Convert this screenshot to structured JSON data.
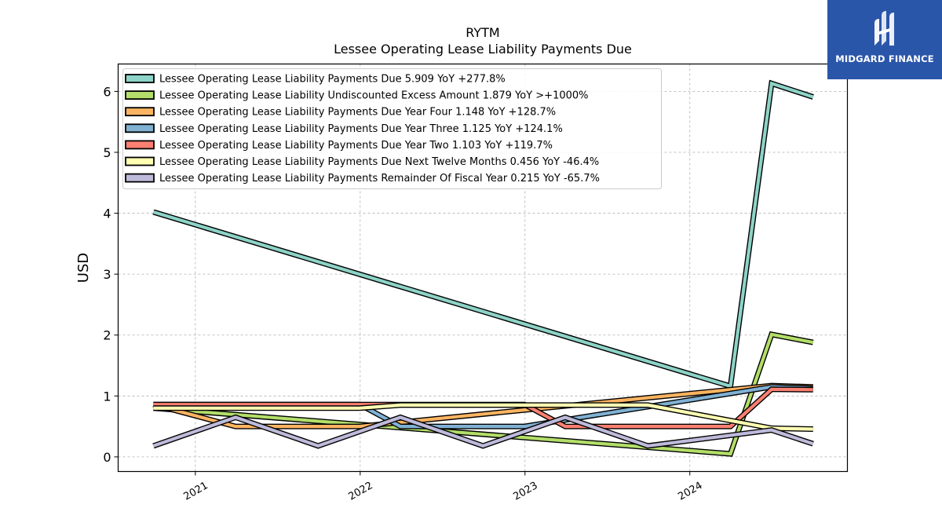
{
  "logo": {
    "text": "MIDGARD FINANCE",
    "background": "#2a56aa"
  },
  "chart_data": {
    "type": "line",
    "title": "RYTM",
    "subtitle": "Lessee Operating Lease Liability Payments Due",
    "xlabel": "",
    "ylabel": "USD",
    "xlim": [
      "2020-07-14",
      "2024-12-15"
    ],
    "ylim": [
      -0.24,
      6.45
    ],
    "yticks": [
      0,
      1,
      2,
      3,
      4,
      5,
      6
    ],
    "xticks": [
      "2021",
      "2022",
      "2023",
      "2024"
    ],
    "grid": true,
    "legend_position": "top-left",
    "x": [
      "2020-09-30",
      "2021-03-31",
      "2021-09-30",
      "2021-12-31",
      "2022-03-31",
      "2022-09-30",
      "2022-12-31",
      "2023-03-31",
      "2023-09-30",
      "2024-03-31",
      "2024-06-30",
      "2024-09-30"
    ],
    "series": [
      {
        "name": "Lessee Operating Lease Liability Payments Due  5.909 YoY +277.8%",
        "color": "#8dd3c7",
        "values": [
          4.02,
          null,
          null,
          null,
          null,
          null,
          null,
          null,
          null,
          1.16,
          6.13,
          5.909
        ]
      },
      {
        "name": "Lessee Operating Lease Liability Undiscounted Excess Amount  1.879 YoY >+1000%",
        "color": "#b3de69",
        "values": [
          0.8,
          null,
          null,
          null,
          null,
          null,
          null,
          null,
          null,
          0.05,
          2.01,
          1.879
        ]
      },
      {
        "name": "Lessee Operating Lease Liability Payments Due Year Four  1.148 YoY +128.7%",
        "color": "#fdb462",
        "values": [
          0.86,
          0.5,
          null,
          0.5,
          null,
          null,
          0.77,
          null,
          null,
          null,
          1.17,
          1.148
        ]
      },
      {
        "name": "Lessee Operating Lease Liability Payments Due Year Three  1.125 YoY +124.1%",
        "color": "#80b1d3",
        "values": [
          0.86,
          0.86,
          null,
          0.86,
          0.5,
          null,
          0.5,
          null,
          null,
          null,
          1.15,
          1.125
        ]
      },
      {
        "name": "Lessee Operating Lease Liability Payments Due Year Two  1.103 YoY +119.7%",
        "color": "#fb8072",
        "values": [
          0.86,
          0.86,
          null,
          0.86,
          0.86,
          null,
          0.86,
          0.5,
          null,
          0.5,
          1.11,
          1.103
        ]
      },
      {
        "name": "Lessee Operating Lease Liability Payments Due Next Twelve Months  0.456 YoY -46.4%",
        "color": "#ffffb3",
        "values": [
          0.8,
          0.8,
          null,
          0.8,
          0.85,
          null,
          0.85,
          0.85,
          0.85,
          null,
          0.47,
          0.456
        ]
      },
      {
        "name": "Lessee Operating Lease Liability Payments Remainder Of Fiscal Year  0.215 YoY -65.7%",
        "color": "#bebada",
        "values": [
          0.18,
          0.65,
          0.18,
          null,
          0.65,
          0.18,
          null,
          0.65,
          0.18,
          null,
          0.44,
          0.215
        ]
      }
    ]
  }
}
